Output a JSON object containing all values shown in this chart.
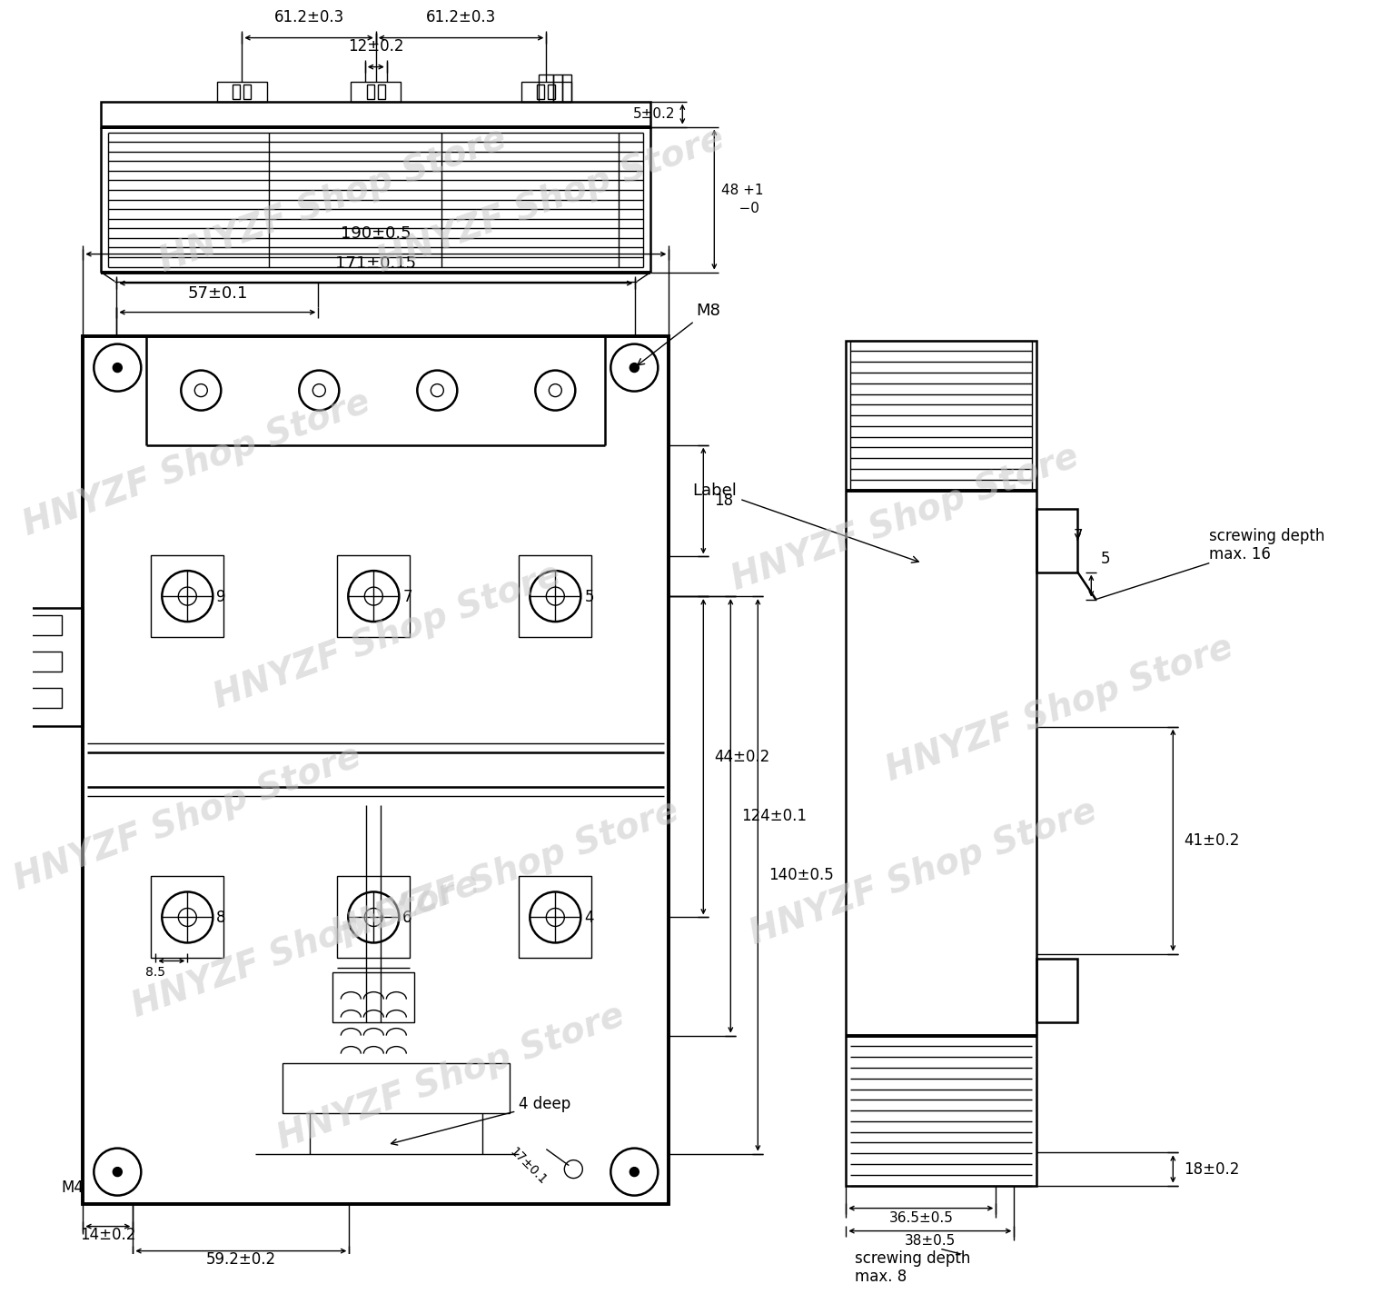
{
  "bg_color": "#ffffff",
  "line_color": "#000000",
  "watermark_text": "HNYZF Shop Store",
  "watermark_color": "#c8c8c8",
  "watermark_alpha": 0.55,
  "annotations": {
    "top_dims_61_left": "61.2±0.3",
    "top_dims_61_right": "61.2±0.3",
    "top_dims_12": "12±0.2",
    "top_48a": "48",
    "top_48b": "+1",
    "top_48c": "-0",
    "top_5": "5±0.2",
    "front_190": "190±0.5",
    "front_171": "171±0.15",
    "front_57": "57±0.1",
    "front_18": "18",
    "front_44": "44±0.2",
    "front_124": "124±0.1",
    "front_140": "140±0.5",
    "front_14": "14±0.2",
    "front_59": "59.2±0.2",
    "front_85": "8.5",
    "front_17": "17±0.1",
    "front_M8": "M8",
    "front_M4": "M4",
    "front_4deep": "4 deep",
    "side_label": "Label",
    "side_screw_top": "screwing depth\nmax. 16",
    "side_screw_bot": "screwing depth\nmax. 8",
    "side_7": "7",
    "side_5": "5",
    "side_41": "41±0.2",
    "side_18": "18±0.2",
    "side_36": "36.5±0.5",
    "side_38": "38±0.5"
  }
}
